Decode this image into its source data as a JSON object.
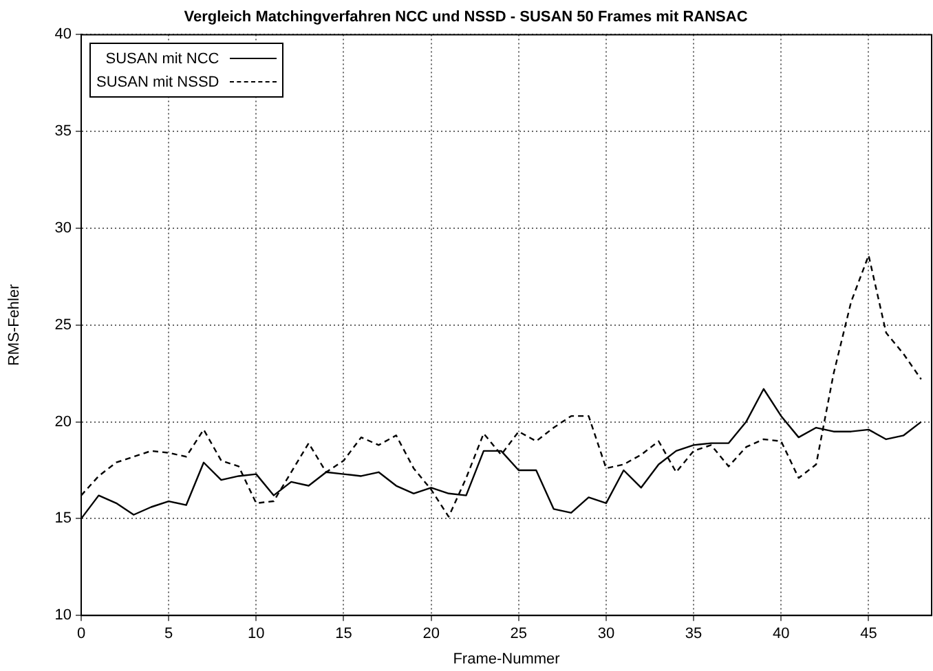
{
  "chart_data": {
    "type": "line",
    "title": "Vergleich Matchingverfahren NCC und NSSD - SUSAN 50 Frames mit RANSAC",
    "xlabel": "Frame-Nummer",
    "ylabel": "RMS-Fehler",
    "x": [
      0,
      1,
      2,
      3,
      4,
      5,
      6,
      7,
      8,
      9,
      10,
      11,
      12,
      13,
      14,
      15,
      16,
      17,
      18,
      19,
      20,
      21,
      22,
      23,
      24,
      25,
      26,
      27,
      28,
      29,
      30,
      31,
      32,
      33,
      34,
      35,
      36,
      37,
      38,
      39,
      40,
      41,
      42,
      43,
      44,
      45,
      46,
      47,
      48
    ],
    "series": [
      {
        "name": "SUSAN mit NCC",
        "color": "#000000",
        "line_style": "solid",
        "values": [
          15.0,
          16.2,
          15.8,
          15.2,
          15.6,
          15.9,
          15.7,
          17.9,
          17.0,
          17.2,
          17.3,
          16.2,
          16.9,
          16.7,
          17.4,
          17.3,
          17.2,
          17.4,
          16.7,
          16.3,
          16.6,
          16.3,
          16.2,
          18.5,
          18.5,
          17.5,
          17.5,
          15.5,
          15.3,
          16.1,
          15.8,
          17.5,
          16.6,
          17.8,
          18.5,
          18.8,
          18.9,
          18.9,
          20.0,
          21.7,
          20.3,
          19.2,
          19.7,
          19.5,
          19.5,
          19.6,
          19.1,
          19.3,
          20.0
        ]
      },
      {
        "name": "SUSAN mit NSSD",
        "color": "#000000",
        "line_style": "dashed",
        "values": [
          16.2,
          17.2,
          17.9,
          18.2,
          18.5,
          18.4,
          18.2,
          19.6,
          18.0,
          17.7,
          15.8,
          15.9,
          17.4,
          18.9,
          17.4,
          18.0,
          19.2,
          18.8,
          19.3,
          17.6,
          16.5,
          15.1,
          17.1,
          19.4,
          18.3,
          19.5,
          19.0,
          19.7,
          20.3,
          20.3,
          17.6,
          17.8,
          18.3,
          19.0,
          17.4,
          18.5,
          18.8,
          17.7,
          18.7,
          19.1,
          19.0,
          17.1,
          17.8,
          22.5,
          26.2,
          28.6,
          24.6,
          23.5,
          22.2
        ]
      }
    ],
    "xlim": [
      0,
      48.6
    ],
    "xticks": [
      0,
      5,
      10,
      15,
      20,
      25,
      30,
      35,
      40,
      45
    ],
    "ylim": [
      10,
      40
    ],
    "yticks": [
      10,
      15,
      20,
      25,
      30,
      35,
      40
    ],
    "grid": true,
    "legend": "top left",
    "marker": "none"
  }
}
